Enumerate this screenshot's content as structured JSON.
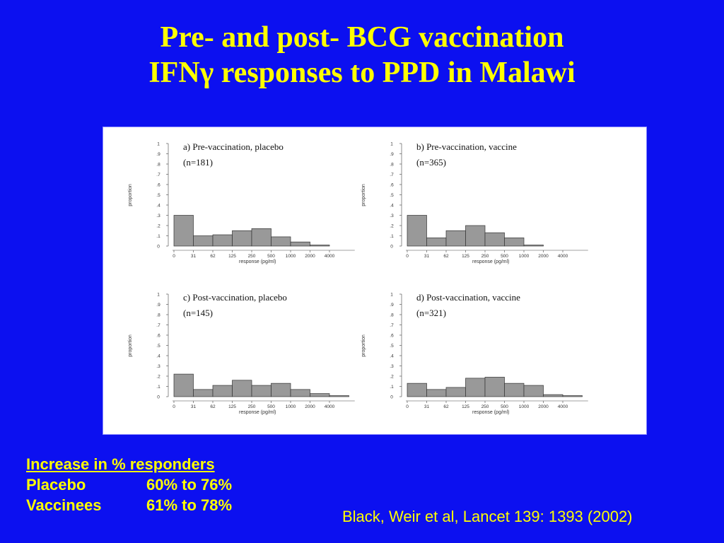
{
  "slide": {
    "title_line1": "Pre- and post- BCG vaccination",
    "title_line2": "IFNγ responses to PPD in Malawi",
    "summary": {
      "heading": "Increase in % responders",
      "rows": [
        {
          "label": "Placebo",
          "value": "60% to 76%"
        },
        {
          "label": "Vaccinees",
          "value": "61% to 78%"
        }
      ]
    },
    "citation": "Black, Weir et al, Lancet 139: 1393 (2002)"
  },
  "colors": {
    "background": "#0c10f0",
    "text": "#ffff00",
    "bar_fill": "#999999",
    "bar_stroke": "#333333"
  },
  "chart_data": [
    {
      "type": "bar",
      "title": "a) Pre-vaccination, placebo",
      "subtitle": "(n=181)",
      "xlabel": "response (pg/ml)",
      "ylabel": "proportion",
      "categories": [
        "0",
        "31",
        "62",
        "125",
        "250",
        "500",
        "1000",
        "2000",
        "4000"
      ],
      "yticks": [
        "0",
        ".1",
        ".2",
        ".3",
        ".4",
        ".5",
        ".6",
        ".7",
        ".8",
        ".9",
        "1"
      ],
      "values": [
        0.3,
        0.1,
        0.11,
        0.15,
        0.17,
        0.09,
        0.04,
        0.01,
        0
      ],
      "ylim": [
        0,
        1
      ]
    },
    {
      "type": "bar",
      "title": "b) Pre-vaccination, vaccine",
      "subtitle": "(n=365)",
      "xlabel": "response (pg/ml)",
      "ylabel": "proportion",
      "categories": [
        "0",
        "31",
        "62",
        "125",
        "250",
        "500",
        "1000",
        "2000",
        "4000"
      ],
      "yticks": [
        "0",
        ".1",
        ".2",
        ".3",
        ".4",
        ".5",
        ".6",
        ".7",
        ".8",
        ".9",
        "1"
      ],
      "values": [
        0.3,
        0.08,
        0.15,
        0.2,
        0.13,
        0.08,
        0.01,
        0,
        0
      ],
      "ylim": [
        0,
        1
      ]
    },
    {
      "type": "bar",
      "title": "c) Post-vaccination, placebo",
      "subtitle": "(n=145)",
      "xlabel": "response (pg/ml)",
      "ylabel": "proportion",
      "categories": [
        "0",
        "31",
        "62",
        "125",
        "250",
        "500",
        "1000",
        "2000",
        "4000"
      ],
      "yticks": [
        "0",
        ".1",
        ".2",
        ".3",
        ".4",
        ".5",
        ".6",
        ".7",
        ".8",
        ".9",
        "1"
      ],
      "values": [
        0.22,
        0.07,
        0.11,
        0.16,
        0.11,
        0.13,
        0.07,
        0.03,
        0.01
      ],
      "ylim": [
        0,
        1
      ]
    },
    {
      "type": "bar",
      "title": "d) Post-vaccination, vaccine",
      "subtitle": "(n=321)",
      "xlabel": "response (pg/ml)",
      "ylabel": "proportion",
      "categories": [
        "0",
        "31",
        "62",
        "125",
        "250",
        "500",
        "1000",
        "2000",
        "4000"
      ],
      "yticks": [
        "0",
        ".1",
        ".2",
        ".3",
        ".4",
        ".5",
        ".6",
        ".7",
        ".8",
        ".9",
        "1"
      ],
      "values": [
        0.13,
        0.07,
        0.09,
        0.18,
        0.19,
        0.13,
        0.11,
        0.02,
        0.01
      ],
      "ylim": [
        0,
        1
      ]
    }
  ]
}
